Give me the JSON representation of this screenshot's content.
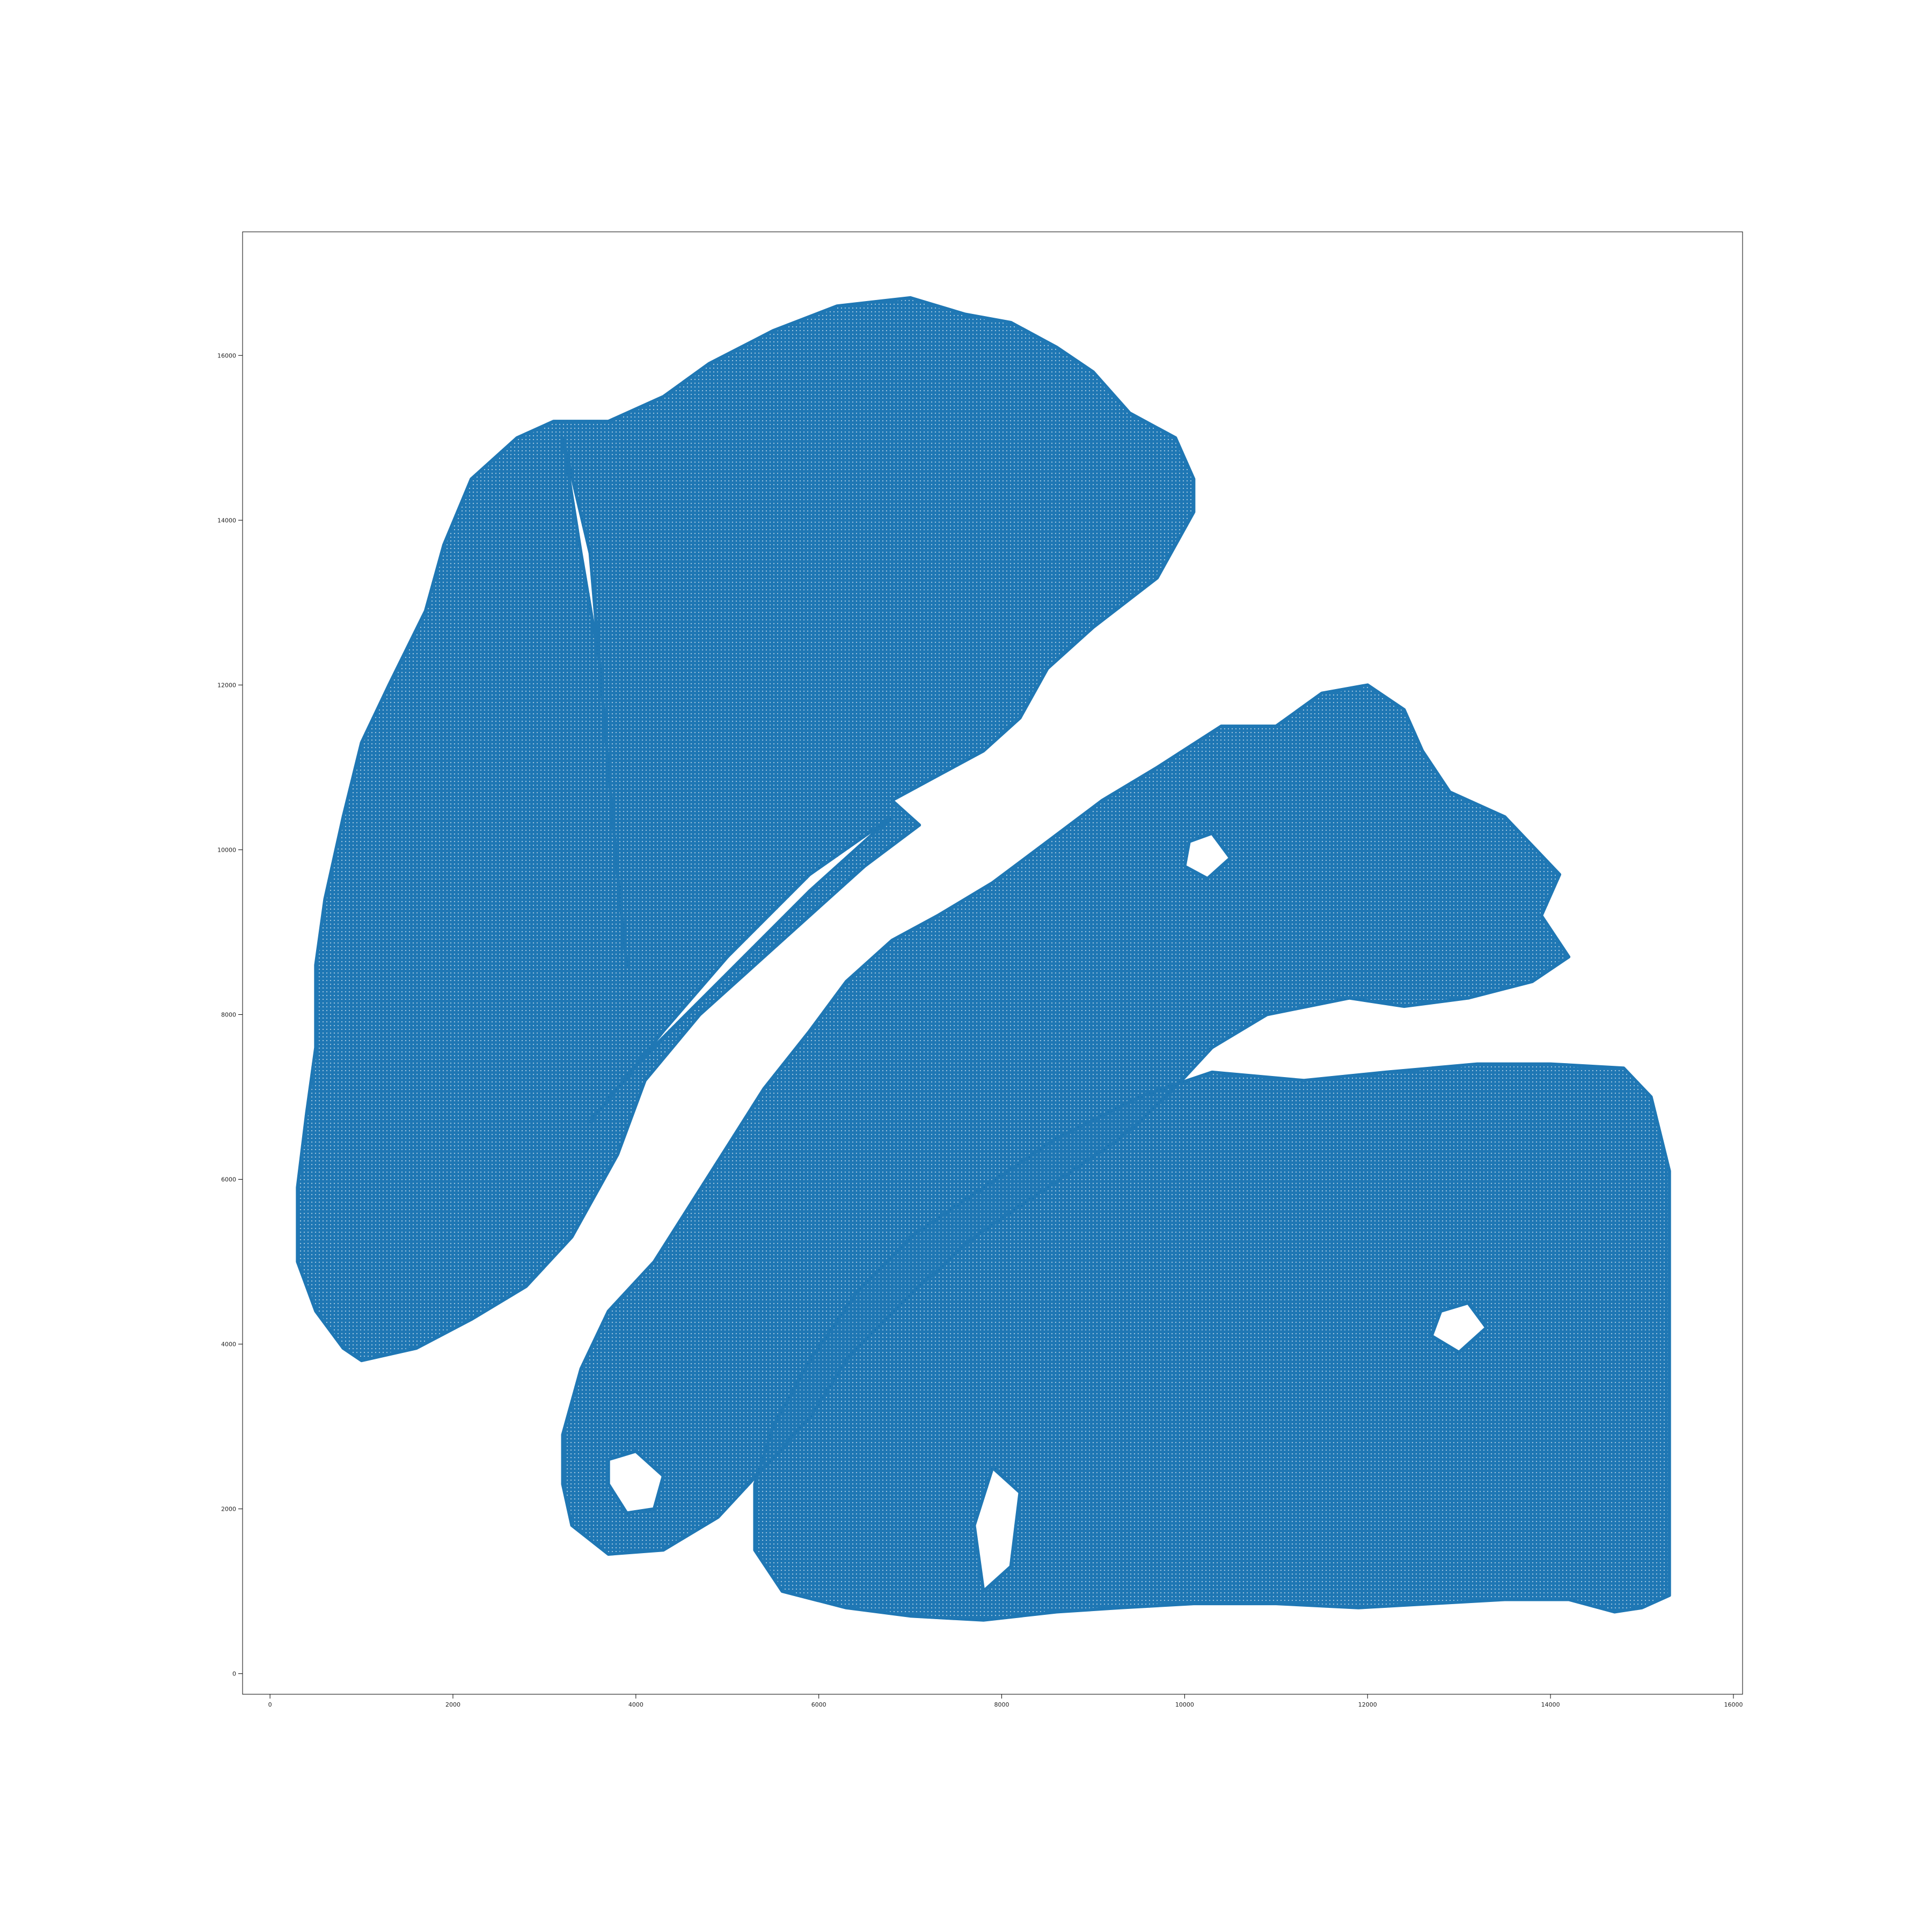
{
  "chart_data": {
    "type": "scatter",
    "title": "",
    "xlabel": "",
    "ylabel": "",
    "xlim": [
      -300,
      16100
    ],
    "ylim": [
      -250,
      17500
    ],
    "x_ticks": [
      0,
      2000,
      4000,
      6000,
      8000,
      10000,
      12000,
      14000,
      16000
    ],
    "y_ticks": [
      0,
      2000,
      4000,
      6000,
      8000,
      10000,
      12000,
      14000,
      16000
    ],
    "x_tick_labels": [
      "0",
      "2000",
      "4000",
      "6000",
      "8000",
      "10000",
      "12000",
      "14000",
      "16000"
    ],
    "y_tick_labels": [
      "0",
      "2000",
      "4000",
      "6000",
      "8000",
      "10000",
      "12000",
      "14000",
      "16000"
    ],
    "grid": false,
    "marker_color": "#1f77b4",
    "series": [
      {
        "region": "upper-left tissue section",
        "outline": [
          [
            1000,
            3800
          ],
          [
            1600,
            3950
          ],
          [
            2200,
            4300
          ],
          [
            2800,
            4700
          ],
          [
            3300,
            5300
          ],
          [
            3800,
            6300
          ],
          [
            4100,
            7200
          ],
          [
            4700,
            8000
          ],
          [
            5600,
            8900
          ],
          [
            6500,
            9800
          ],
          [
            7100,
            10300
          ],
          [
            6800,
            10600
          ],
          [
            7300,
            10900
          ],
          [
            7800,
            11200
          ],
          [
            8200,
            11600
          ],
          [
            8500,
            12200
          ],
          [
            9000,
            12700
          ],
          [
            9700,
            13300
          ],
          [
            10100,
            14100
          ],
          [
            10100,
            14500
          ],
          [
            9900,
            15000
          ],
          [
            9400,
            15300
          ],
          [
            9000,
            15800
          ],
          [
            8600,
            16100
          ],
          [
            8100,
            16400
          ],
          [
            7600,
            16500
          ],
          [
            7000,
            16700
          ],
          [
            6200,
            16600
          ],
          [
            5500,
            16300
          ],
          [
            4800,
            15900
          ],
          [
            4300,
            15500
          ],
          [
            3700,
            15200
          ],
          [
            3100,
            15200
          ],
          [
            2700,
            15000
          ],
          [
            2200,
            14500
          ],
          [
            1900,
            13700
          ],
          [
            1700,
            12900
          ],
          [
            1300,
            12000
          ],
          [
            1000,
            11300
          ],
          [
            800,
            10400
          ],
          [
            600,
            9400
          ],
          [
            500,
            8600
          ],
          [
            500,
            7600
          ],
          [
            400,
            6800
          ],
          [
            300,
            5900
          ],
          [
            300,
            5000
          ],
          [
            500,
            4400
          ],
          [
            800,
            3950
          ]
        ],
        "gaps": [
          [
            [
              3500,
              6700
            ],
            [
              4300,
              7800
            ],
            [
              5000,
              8700
            ],
            [
              5900,
              9700
            ],
            [
              6800,
              10400
            ],
            [
              5900,
              9500
            ],
            [
              5000,
              8500
            ],
            [
              4100,
              7500
            ]
          ],
          [
            [
              3200,
              15000
            ],
            [
              3500,
              13600
            ],
            [
              3600,
              12300
            ],
            [
              3700,
              11000
            ],
            [
              3800,
              9700
            ],
            [
              3900,
              8600
            ],
            [
              3800,
              9700
            ],
            [
              3700,
              11000
            ],
            [
              3600,
              12300
            ],
            [
              3400,
              13600
            ]
          ]
        ]
      },
      {
        "region": "middle tissue section",
        "outline": [
          [
            3300,
            1800
          ],
          [
            3700,
            1450
          ],
          [
            4300,
            1500
          ],
          [
            4900,
            1900
          ],
          [
            5400,
            2500
          ],
          [
            5900,
            3100
          ],
          [
            6300,
            3800
          ],
          [
            6900,
            4500
          ],
          [
            7700,
            5300
          ],
          [
            8500,
            5900
          ],
          [
            9300,
            6500
          ],
          [
            9800,
            7000
          ],
          [
            10300,
            7600
          ],
          [
            10900,
            8000
          ],
          [
            11800,
            8200
          ],
          [
            12400,
            8100
          ],
          [
            13100,
            8200
          ],
          [
            13800,
            8400
          ],
          [
            14200,
            8700
          ],
          [
            13900,
            9200
          ],
          [
            14100,
            9700
          ],
          [
            13500,
            10400
          ],
          [
            12900,
            10700
          ],
          [
            12600,
            11200
          ],
          [
            12400,
            11700
          ],
          [
            12000,
            12000
          ],
          [
            11500,
            11900
          ],
          [
            11000,
            11500
          ],
          [
            10400,
            11500
          ],
          [
            9700,
            11000
          ],
          [
            9100,
            10600
          ],
          [
            8500,
            10100
          ],
          [
            7900,
            9600
          ],
          [
            7300,
            9200
          ],
          [
            6800,
            8900
          ],
          [
            6300,
            8400
          ],
          [
            5900,
            7800
          ],
          [
            5400,
            7100
          ],
          [
            5000,
            6400
          ],
          [
            4600,
            5700
          ],
          [
            4200,
            5000
          ],
          [
            3700,
            4400
          ],
          [
            3400,
            3700
          ],
          [
            3200,
            2900
          ],
          [
            3200,
            2300
          ]
        ],
        "gaps": [
          [
            [
              3700,
              2300
            ],
            [
              3900,
              1950
            ],
            [
              4200,
              2000
            ],
            [
              4300,
              2400
            ],
            [
              4000,
              2700
            ],
            [
              3700,
              2600
            ]
          ],
          [
            [
              10000,
              9800
            ],
            [
              10250,
              9650
            ],
            [
              10500,
              9900
            ],
            [
              10300,
              10200
            ],
            [
              10050,
              10100
            ]
          ]
        ]
      },
      {
        "region": "lower-right tissue section",
        "outline": [
          [
            5300,
            1500
          ],
          [
            5600,
            1000
          ],
          [
            6300,
            800
          ],
          [
            7000,
            700
          ],
          [
            7800,
            650
          ],
          [
            8600,
            750
          ],
          [
            9300,
            800
          ],
          [
            10100,
            850
          ],
          [
            11000,
            850
          ],
          [
            11900,
            800
          ],
          [
            12700,
            850
          ],
          [
            13500,
            900
          ],
          [
            14200,
            900
          ],
          [
            14700,
            750
          ],
          [
            15000,
            800
          ],
          [
            15300,
            950
          ],
          [
            15300,
            2000
          ],
          [
            15300,
            3200
          ],
          [
            15300,
            4300
          ],
          [
            15300,
            5100
          ],
          [
            15300,
            6100
          ],
          [
            15100,
            7000
          ],
          [
            14800,
            7350
          ],
          [
            14000,
            7400
          ],
          [
            13200,
            7400
          ],
          [
            12200,
            7300
          ],
          [
            11300,
            7200
          ],
          [
            10300,
            7300
          ],
          [
            9500,
            7000
          ],
          [
            8600,
            6500
          ],
          [
            7800,
            5900
          ],
          [
            7000,
            5300
          ],
          [
            6400,
            4600
          ],
          [
            5900,
            3800
          ],
          [
            5500,
            3000
          ],
          [
            5300,
            2300
          ]
        ],
        "gaps": [
          [
            [
              7800,
              1000
            ],
            [
              8100,
              1300
            ],
            [
              8200,
              2200
            ],
            [
              7900,
              2500
            ],
            [
              7700,
              1800
            ]
          ],
          [
            [
              12700,
              4100
            ],
            [
              13000,
              3900
            ],
            [
              13300,
              4200
            ],
            [
              13100,
              4500
            ],
            [
              12800,
              4400
            ]
          ]
        ]
      }
    ]
  }
}
